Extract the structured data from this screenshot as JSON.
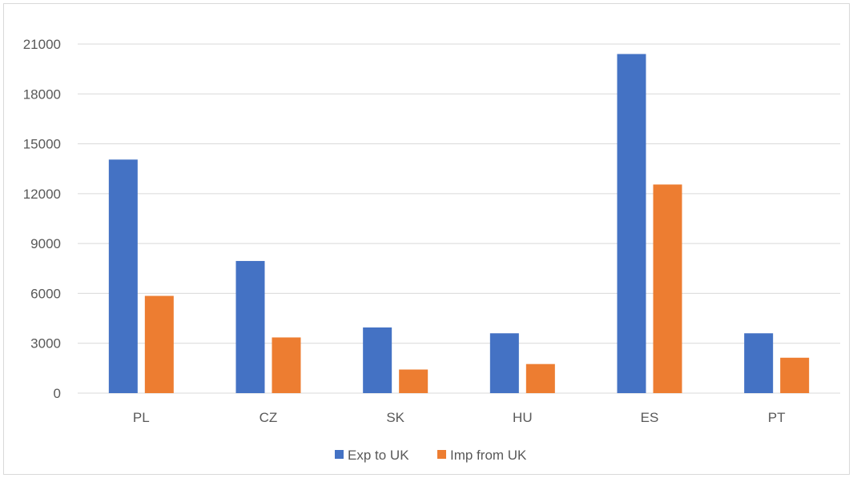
{
  "chart_data": {
    "type": "bar",
    "title": "",
    "xlabel": "",
    "ylabel": "",
    "categories": [
      "PL",
      "CZ",
      "SK",
      "HU",
      "ES",
      "PT"
    ],
    "series": [
      {
        "name": "Exp to UK",
        "color": "#4472C4",
        "values": [
          14050,
          7950,
          3950,
          3600,
          20400,
          3600
        ]
      },
      {
        "name": "Imp from UK",
        "color": "#ED7D31",
        "values": [
          5850,
          3350,
          1420,
          1750,
          12550,
          2130
        ]
      }
    ],
    "ylim": [
      0,
      21000
    ],
    "yticks": [
      0,
      3000,
      6000,
      9000,
      12000,
      15000,
      18000,
      21000
    ],
    "ytick_labels": [
      "0",
      "3000",
      "6000",
      "9000",
      "12000",
      "15000",
      "18000",
      "21000"
    ],
    "grid": true,
    "gridline_color": "#d9d9d9",
    "legend_position": "bottom"
  }
}
